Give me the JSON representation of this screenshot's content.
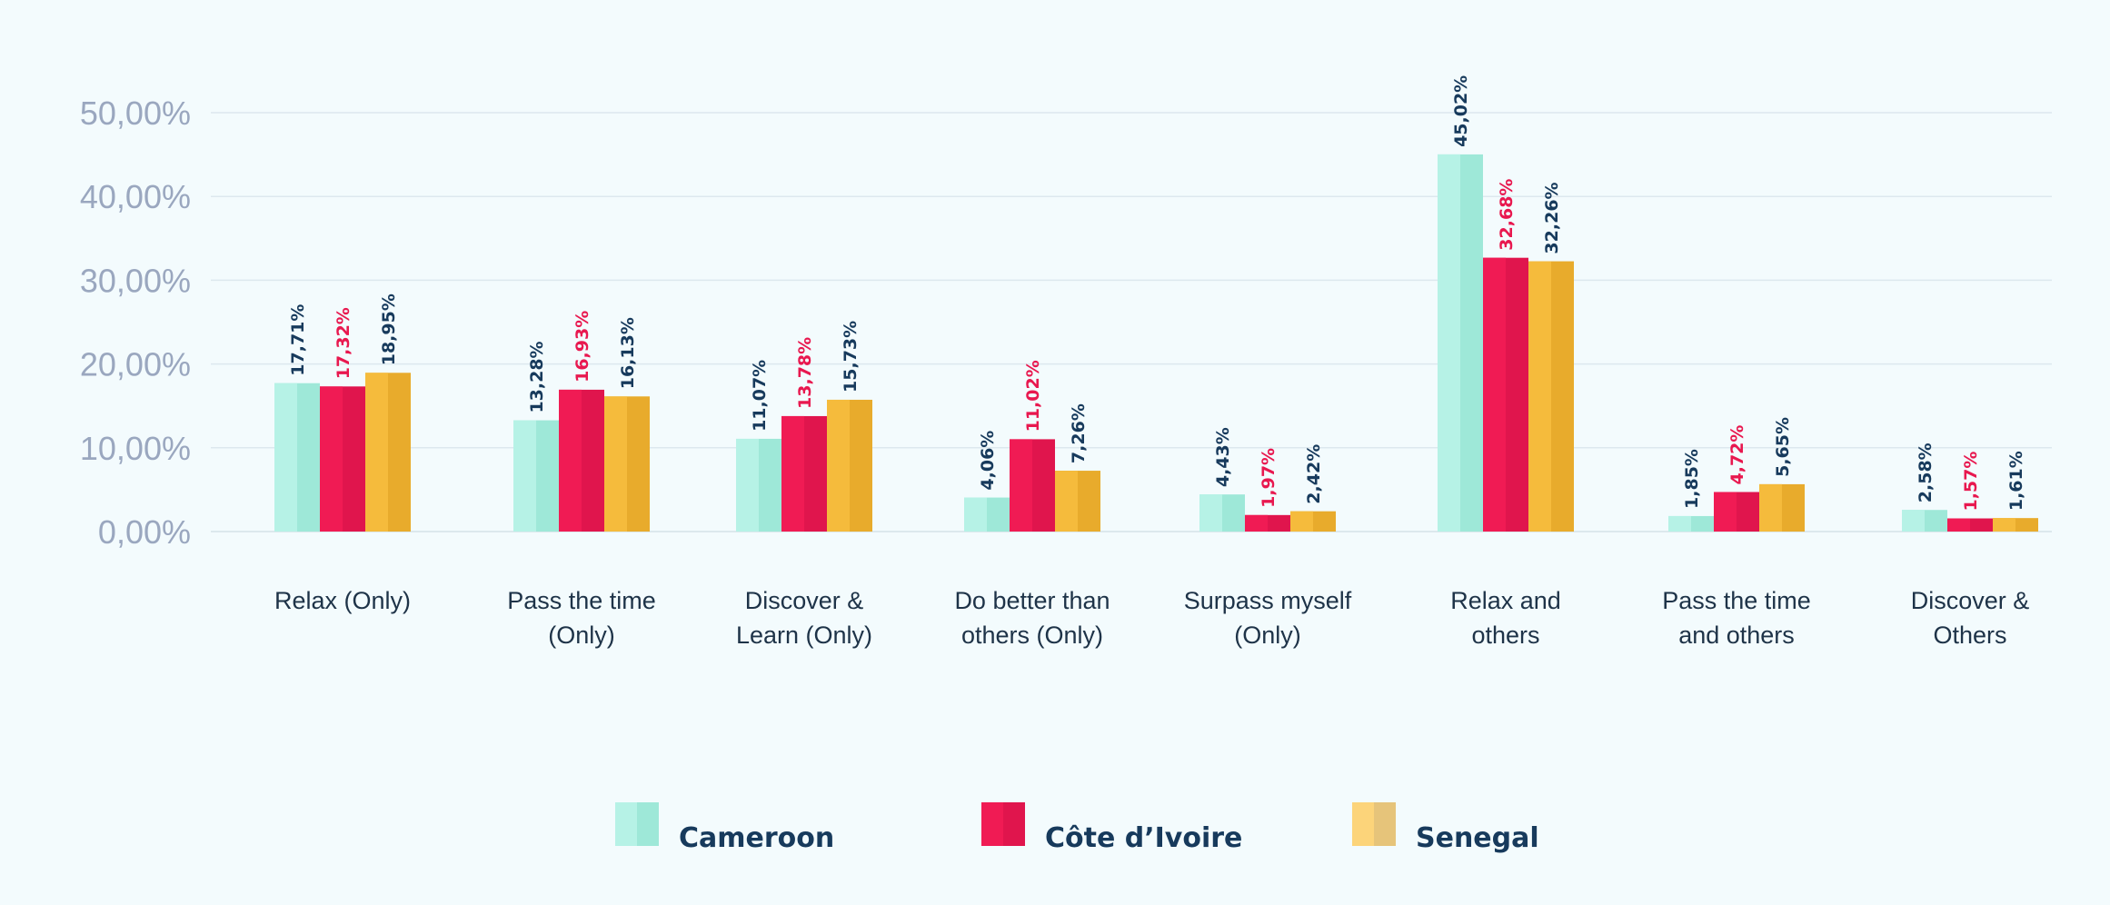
{
  "chart_data": {
    "type": "bar",
    "categories": [
      "Relax (Only)",
      "Pass the time (Only)",
      "Discover & Learn (Only)",
      "Do better than others (Only)",
      "Surpass myself (Only)",
      "Relax and others",
      "Pass the time and others",
      "Discover & Others"
    ],
    "category_lines": [
      [
        "Relax (Only)"
      ],
      [
        "Pass the time",
        "(Only)"
      ],
      [
        "Discover &",
        "Learn (Only)"
      ],
      [
        "Do better than",
        "others (Only)"
      ],
      [
        "Surpass myself",
        "(Only)"
      ],
      [
        "Relax and",
        "others"
      ],
      [
        "Pass the time",
        "and others"
      ],
      [
        "Discover &",
        "Others"
      ]
    ],
    "series": [
      {
        "name": "Cameroon",
        "values": [
          17.71,
          13.28,
          11.07,
          4.06,
          4.43,
          45.02,
          1.85,
          2.58
        ],
        "labels": [
          "17,71%",
          "13,28%",
          "11,07%",
          "4,06%",
          "4,43%",
          "45,02%",
          "1,85%",
          "2,58%"
        ],
        "color": "#9ee8d8",
        "light_color": "#b6f2e6",
        "label_color": "#173a5c"
      },
      {
        "name": "Côte d’Ivoire",
        "values": [
          17.32,
          16.93,
          13.78,
          11.02,
          1.97,
          32.68,
          4.72,
          1.57
        ],
        "labels": [
          "17,32%",
          "16,93%",
          "13,78%",
          "11,02%",
          "1,97%",
          "32,68%",
          "4,72%",
          "1,57%"
        ],
        "color": "#e0154d",
        "light_color": "#f01b54",
        "label_color": "#e8184f"
      },
      {
        "name": "Senegal",
        "values": [
          18.95,
          16.13,
          15.73,
          7.26,
          2.42,
          32.26,
          5.65,
          1.61
        ],
        "labels": [
          "18,95%",
          "16,13%",
          "15,73%",
          "7,26%",
          "2,42%",
          "32,26%",
          "5,65%",
          "1,61%"
        ],
        "color": "#e8ab2c",
        "light_color": "#f5bb3c",
        "label_color": "#173a5c"
      }
    ],
    "yticks": [
      0,
      10,
      20,
      30,
      40,
      50
    ],
    "ytick_labels": [
      "0,00%",
      "10,00%",
      "20,00%",
      "30,00%",
      "40,00%",
      "50,00%"
    ],
    "ylim": [
      0,
      50
    ],
    "grid": true,
    "legend_position": "bottom",
    "legend": {
      "Cameroon": "Cameroon",
      "Côte d’Ivoire": "Côte d’Ivoire",
      "Senegal": "Senegal"
    },
    "legend_box_colors": [
      [
        "#b6f2e6",
        "#9ee8d8"
      ],
      [
        "#f01b54",
        "#e0154d"
      ],
      [
        "#fcd47a",
        "#e6c47a"
      ]
    ]
  }
}
